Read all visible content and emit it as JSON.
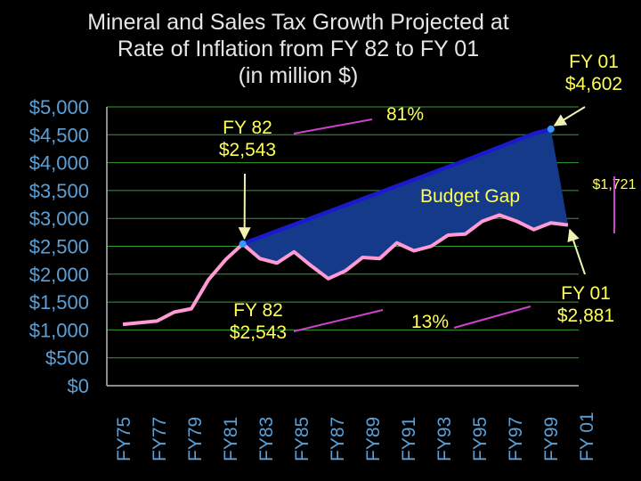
{
  "chart_data": {
    "type": "line",
    "title": [
      "Mineral and Sales Tax Growth Projected at",
      "Rate of Inflation from FY 82 to FY 01",
      "(in million $)"
    ],
    "y_ticks": [
      "$5,000",
      "$4,500",
      "$4,000",
      "$3,500",
      "$3,000",
      "$2,500",
      "$2,000",
      "$1,500",
      "$1,000",
      "$500",
      "$0"
    ],
    "x_ticks": [
      "FY75",
      "FY77",
      "FY79",
      "FY81",
      "FY83",
      "FY85",
      "FY87",
      "FY89",
      "FY91",
      "FY93",
      "FY95",
      "FY97",
      "FY99",
      "FY 01"
    ],
    "ylim": [
      0,
      5000
    ],
    "grid": true,
    "fiscal_years": [
      1975,
      1976,
      1977,
      1978,
      1979,
      1980,
      1981,
      1982,
      1983,
      1984,
      1985,
      1986,
      1987,
      1988,
      1989,
      1990,
      1991,
      1992,
      1993,
      1994,
      1995,
      1996,
      1997,
      1998,
      1999,
      2000,
      2001
    ],
    "series": [
      {
        "values": [
          1100,
          1130,
          1160,
          1320,
          1380,
          1900,
          2260,
          2543,
          2280,
          2200,
          2400,
          2150,
          1920,
          2060,
          2300,
          2280,
          2560,
          2420,
          2500,
          2700,
          2720,
          2950,
          3060,
          2950,
          2800,
          2920,
          2881
        ],
        "color": "#ff9ad5"
      },
      {
        "values": [
          2543,
          2660,
          2775,
          2890,
          3005,
          3120,
          3235,
          3350,
          3465,
          3580,
          3695,
          3810,
          3925,
          4040,
          4160,
          4280,
          4400,
          4520,
          4602
        ],
        "color": "#1a1acc"
      }
    ],
    "fill_color": "#163a8a",
    "annotations": [
      {
        "text": [
          "FY 82",
          "$2,543"
        ],
        "color": "#ffff55"
      },
      {
        "text": [
          "81%"
        ],
        "color": "#ffff55"
      },
      {
        "text": [
          "FY 01",
          "$4,602"
        ],
        "color": "#ffff55"
      },
      {
        "text": [
          "Budget Gap"
        ],
        "color": "#ffff55"
      },
      {
        "text": [
          "$1,721"
        ],
        "color": "#ffff55"
      },
      {
        "text": [
          "FY 82",
          "$2,543"
        ],
        "color": "#ffff55"
      },
      {
        "text": [
          "13%"
        ],
        "color": "#ffff55"
      },
      {
        "text": [
          "FY 01",
          "$2,881"
        ],
        "color": "#ffff55"
      }
    ],
    "colors": {
      "axis_text": "#5aa0d8",
      "grid": "#2fa02f",
      "axis": "#bbbbbb",
      "connector": "#cc44cc",
      "arrow": "#f0f0b0",
      "marker": "#3399ff"
    }
  }
}
